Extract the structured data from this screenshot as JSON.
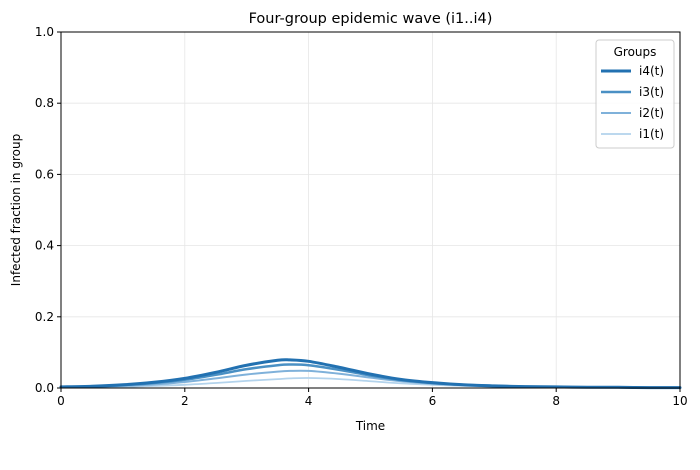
{
  "chart_data": {
    "type": "line",
    "title": "Four-group epidemic wave (i1..i4)",
    "xlabel": "Time",
    "ylabel": "Infected fraction in group",
    "xlim": [
      0,
      10
    ],
    "ylim": [
      0,
      1.0
    ],
    "xticks": [
      "0",
      "2",
      "4",
      "6",
      "8",
      "10"
    ],
    "yticks": [
      "0.0",
      "0.2",
      "0.4",
      "0.6",
      "0.8",
      "1.0"
    ],
    "grid": true,
    "legend": {
      "title": "Groups",
      "placement": "top-right"
    },
    "x": [
      0,
      0.5,
      1,
      1.5,
      2,
      2.5,
      3,
      3.5,
      3.7,
      4,
      4.5,
      5,
      5.5,
      6,
      6.5,
      7,
      7.5,
      8,
      8.5,
      9,
      9.5,
      10
    ],
    "series": [
      {
        "name": "i4(t)",
        "color": "#2271b1",
        "width": 3.0,
        "values": [
          0.003,
          0.005,
          0.009,
          0.016,
          0.027,
          0.044,
          0.064,
          0.078,
          0.079,
          0.075,
          0.058,
          0.039,
          0.024,
          0.015,
          0.009,
          0.006,
          0.004,
          0.003,
          0.002,
          0.002,
          0.001,
          0.001
        ]
      },
      {
        "name": "i3(t)",
        "color": "#4a90c4",
        "width": 2.5,
        "values": [
          0.003,
          0.004,
          0.008,
          0.014,
          0.023,
          0.037,
          0.053,
          0.064,
          0.066,
          0.064,
          0.051,
          0.035,
          0.022,
          0.014,
          0.009,
          0.006,
          0.004,
          0.003,
          0.002,
          0.002,
          0.001,
          0.001
        ]
      },
      {
        "name": "i2(t)",
        "color": "#7fb1da",
        "width": 2.0,
        "values": [
          0.002,
          0.003,
          0.006,
          0.01,
          0.017,
          0.027,
          0.038,
          0.046,
          0.048,
          0.048,
          0.04,
          0.029,
          0.019,
          0.012,
          0.008,
          0.005,
          0.004,
          0.003,
          0.002,
          0.001,
          0.001,
          0.001
        ]
      },
      {
        "name": "i1(t)",
        "color": "#b3d3ec",
        "width": 1.8,
        "values": [
          0.001,
          0.002,
          0.003,
          0.006,
          0.009,
          0.014,
          0.02,
          0.025,
          0.027,
          0.028,
          0.025,
          0.019,
          0.013,
          0.009,
          0.006,
          0.004,
          0.003,
          0.002,
          0.001,
          0.001,
          0.001,
          0.001
        ]
      }
    ]
  }
}
